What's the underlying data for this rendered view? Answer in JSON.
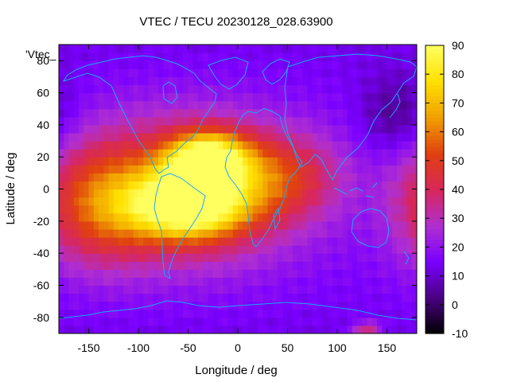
{
  "chart_data": {
    "type": "heatmap",
    "title": "VTEC / TECU 20230128_028.63900",
    "xlabel": "Longitude / deg",
    "ylabel": "Latitude / deg",
    "map_label": "'Vtec_",
    "xlim": [
      -180,
      180
    ],
    "ylim": [
      -90,
      90
    ],
    "x_ticks": [
      -150,
      -100,
      -50,
      0,
      50,
      100,
      150
    ],
    "y_ticks": [
      -80,
      -60,
      -40,
      -20,
      0,
      20,
      40,
      60,
      80
    ],
    "colorbar": {
      "range": [
        -10,
        90
      ],
      "ticks": [
        -10,
        0,
        10,
        20,
        30,
        40,
        50,
        60,
        70,
        80,
        90
      ],
      "palette": [
        "#000000",
        "#4b0082",
        "#7a00ff",
        "#b02fd0",
        "#d8275a",
        "#e04010",
        "#f0a000",
        "#ffe000",
        "#ffff60"
      ]
    },
    "field": {
      "background_tecu": 15,
      "features": [
        {
          "name": "equatorial-anomaly-north",
          "lon": -30,
          "lat": 18,
          "tecu": 80,
          "width_deg": 28,
          "height_deg": 12
        },
        {
          "name": "equatorial-anomaly-south",
          "lon": -50,
          "lat": -10,
          "tecu": 78,
          "width_deg": 40,
          "height_deg": 14
        },
        {
          "name": "main-ionization-region",
          "lon": -50,
          "lat": 0,
          "tecu": 50,
          "width_deg": 75,
          "height_deg": 32
        },
        {
          "name": "pacific-extension",
          "lon": -140,
          "lat": -10,
          "tecu": 44,
          "width_deg": 40,
          "height_deg": 26
        },
        {
          "name": "africa-extension",
          "lon": 45,
          "lat": 8,
          "tecu": 38,
          "width_deg": 40,
          "height_deg": 18
        },
        {
          "name": "asia-low",
          "lon": 160,
          "lat": 45,
          "tecu": 2,
          "width_deg": 25,
          "height_deg": 18
        },
        {
          "name": "antarctic-patch",
          "lon": 130,
          "lat": -88,
          "tecu": 38,
          "width_deg": 10,
          "height_deg": 4
        }
      ]
    }
  },
  "colors": {
    "coastline": "#19a8ff",
    "frame": "#000000"
  }
}
